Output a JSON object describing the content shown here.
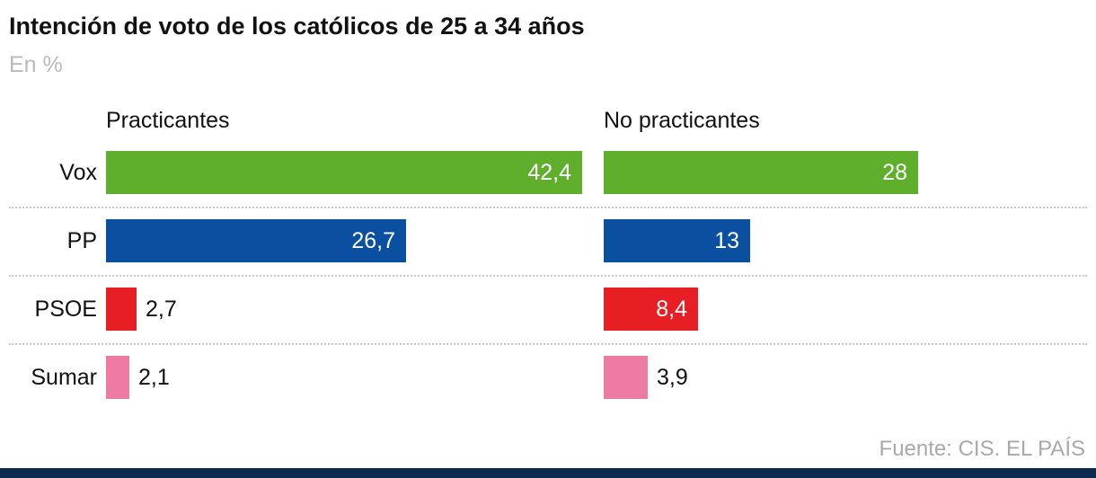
{
  "header": {
    "title": "Intención de voto de los católicos de 25 a 34 años",
    "subtitle": "En %"
  },
  "footer": {
    "source": "Fuente: CIS. EL PAÍS"
  },
  "chart_data": {
    "type": "bar",
    "orientation": "horizontal",
    "title": "Intención de voto de los católicos de 25 a 34 años",
    "unit": "%",
    "xlim": [
      0,
      44
    ],
    "grid": "dotted-row-separators",
    "legend_position": "column-headers-top",
    "categories": [
      "Vox",
      "PP",
      "PSOE",
      "Sumar"
    ],
    "series": [
      {
        "name": "Practicantes",
        "values": [
          42.4,
          26.7,
          2.7,
          2.1
        ],
        "labels": [
          "42,4",
          "26,7",
          "2,7",
          "2,1"
        ]
      },
      {
        "name": "No practicantes",
        "values": [
          28,
          13,
          8.4,
          3.9
        ],
        "labels": [
          "28",
          "13",
          "8,4",
          "3,9"
        ]
      }
    ],
    "colors": {
      "Vox": "#5fae2c",
      "PP": "#0b4fa0",
      "PSOE": "#e81e25",
      "Sumar": "#ee7ba4"
    },
    "brand_bar_color": "#0d2b4d",
    "separator_color": "#c8c8c8"
  }
}
